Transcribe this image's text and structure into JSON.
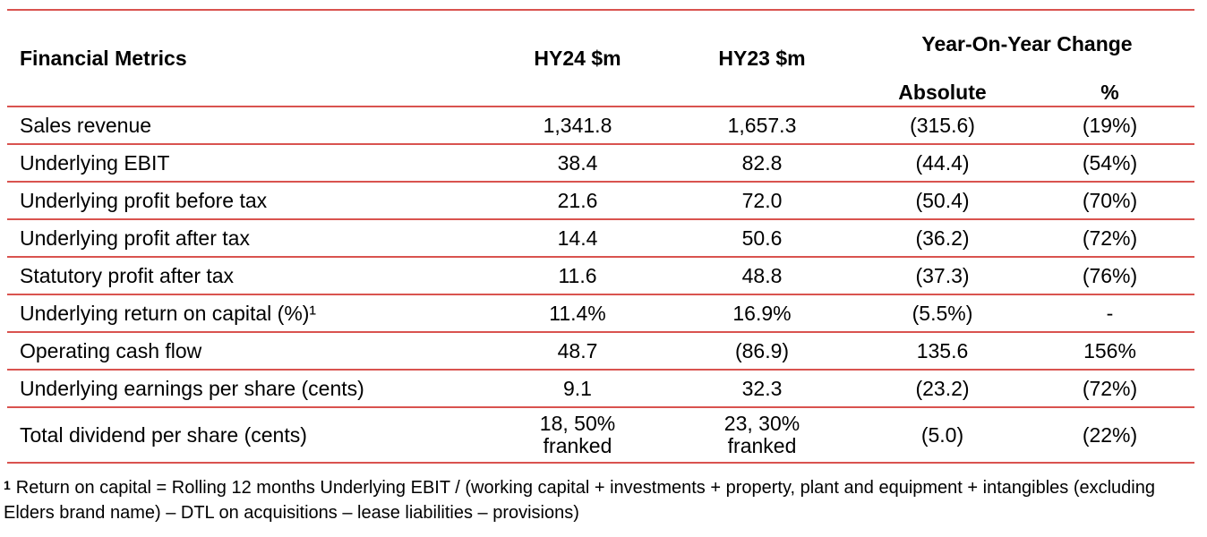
{
  "header": {
    "metric": "Financial Metrics",
    "hy24": "HY24 $m",
    "hy23": "HY23 $m",
    "yoy": "Year-On-Year Change",
    "absolute": "Absolute",
    "percent": "%"
  },
  "rows": [
    {
      "metric": "Sales revenue",
      "hy24": "1,341.8",
      "hy23": "1,657.3",
      "abs": "(315.6)",
      "pct": "(19%)"
    },
    {
      "metric": "Underlying EBIT",
      "hy24": "38.4",
      "hy23": "82.8",
      "abs": "(44.4)",
      "pct": "(54%)"
    },
    {
      "metric": "Underlying profit before tax",
      "hy24": "21.6",
      "hy23": "72.0",
      "abs": "(50.4)",
      "pct": "(70%)"
    },
    {
      "metric": "Underlying profit after tax",
      "hy24": "14.4",
      "hy23": "50.6",
      "abs": "(36.2)",
      "pct": "(72%)"
    },
    {
      "metric": "Statutory profit after tax",
      "hy24": "11.6",
      "hy23": "48.8",
      "abs": "(37.3)",
      "pct": "(76%)"
    },
    {
      "metric": "Underlying return on capital (%)¹",
      "hy24": "11.4%",
      "hy23": "16.9%",
      "abs": "(5.5%)",
      "pct": "-"
    },
    {
      "metric": "Operating cash flow",
      "hy24": "48.7",
      "hy23": "(86.9)",
      "abs": "135.6",
      "pct": "156%"
    },
    {
      "metric": "Underlying earnings per share (cents)",
      "hy24": "9.1",
      "hy23": "32.3",
      "abs": "(23.2)",
      "pct": "(72%)"
    },
    {
      "metric": "Total dividend per share (cents)",
      "hy24_line1": "18, 50%",
      "hy24_line2": "franked",
      "hy23_line1": "23, 30%",
      "hy23_line2": "franked",
      "abs": "(5.0)",
      "pct": "(22%)"
    }
  ],
  "footnote": {
    "marker": "1",
    "text": "Return on capital = Rolling 12 months Underlying EBIT / (working capital + investments + property, plant and equipment + intangibles (excluding Elders brand name) – DTL on acquisitions – lease liabilities – provisions)"
  },
  "colors": {
    "rule": "#d9534f"
  }
}
